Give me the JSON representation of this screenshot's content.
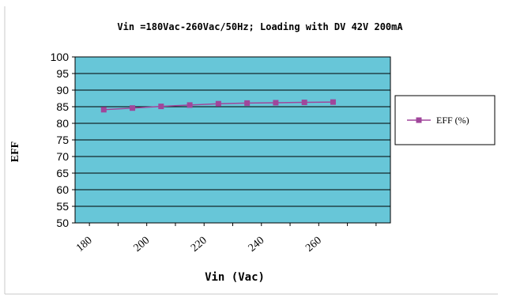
{
  "chart_data": {
    "type": "line",
    "title": "Vin =180Vac-260Vac/50Hz; Loading with DV 42V 200mA",
    "xlabel": "Vin (Vac)",
    "ylabel": "EFF",
    "x_tick_labels": [
      "180",
      "200",
      "220",
      "240",
      "260"
    ],
    "y_tick_labels": [
      "50",
      "55",
      "60",
      "65",
      "70",
      "75",
      "80",
      "85",
      "90",
      "95",
      "100"
    ],
    "xlim": [
      175,
      285
    ],
    "ylim": [
      50,
      100
    ],
    "grid": "horizontal",
    "legend_position": "right",
    "plot_background": "#67c6d8",
    "series_color": "#a0469b",
    "series": [
      {
        "name": "EFF (%)",
        "x": [
          185,
          195,
          205,
          215,
          225,
          235,
          245,
          255,
          265
        ],
        "values": [
          84.1,
          84.6,
          85.1,
          85.5,
          85.9,
          86.1,
          86.2,
          86.3,
          86.4
        ]
      }
    ]
  }
}
